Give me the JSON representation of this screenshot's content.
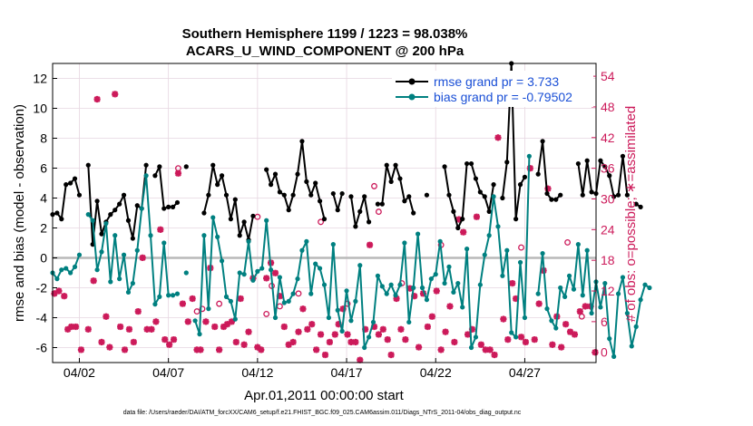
{
  "chart_data": {
    "type": "line",
    "title_line1": "Southern Hemisphere 1199 / 1223 = 98.038%",
    "title_line2": "ACARS_U_WIND_COMPONENT @ 200 hPa",
    "xlabel": "Apr.01,2011 00:00:00 start",
    "ylabel_left": "rmse and bias (model - observation)",
    "ylabel_right": "# of obs: o=possible; ∗=assimilated",
    "footer": "data file: /Users/raeder/DAI/ATM_forcXX/CAM6_setup/f.e21.FHIST_BGC.f09_025.CAM6assim.011/Diags_NTrS_2011-04/obs_diag_output.nc",
    "xlim": [
      0.5,
      31.0
    ],
    "ylim_left": [
      -7,
      13
    ],
    "ylim_right": [
      -2,
      56.5
    ],
    "x_ticks": [
      {
        "value": 2,
        "label": "04/02"
      },
      {
        "value": 7,
        "label": "04/07"
      },
      {
        "value": 12,
        "label": "04/12"
      },
      {
        "value": 17,
        "label": "04/17"
      },
      {
        "value": 22,
        "label": "04/22"
      },
      {
        "value": 27,
        "label": "04/27"
      }
    ],
    "left_ticks": [
      "-6",
      "-4",
      "-2",
      "0",
      "2",
      "4",
      "6",
      "8",
      "10",
      "12"
    ],
    "right_ticks": [
      "0",
      "6",
      "12",
      "18",
      "24",
      "30",
      "36",
      "42",
      "48",
      "54"
    ],
    "legend_position": "top-right",
    "colors": {
      "rmse": "#000000",
      "bias": "#008080",
      "obs": "#cc1a5a",
      "zero_line": "#b8b8b8",
      "grid": "#e6d6e0"
    },
    "series": [
      {
        "name": "rmse",
        "legend_label": "rmse grand pr = 3.733",
        "axis": "left",
        "x_start": 0.5,
        "step": 0.25,
        "values": [
          2.9,
          3.0,
          2.6,
          4.9,
          5.0,
          5.3,
          4.2,
          null,
          6.2,
          0.9,
          3.8,
          1.6,
          2.4,
          2.9,
          3.2,
          3.6,
          4.2,
          2.5,
          1.3,
          3.5,
          3.3,
          6.2,
          null,
          5.5,
          6.1,
          3.3,
          3.4,
          3.4,
          3.7,
          null,
          6.1,
          null,
          null,
          null,
          3.0,
          4.2,
          6.2,
          4.9,
          5.5,
          4.2,
          2.6,
          3.9,
          1.5,
          2.4,
          1.2,
          2.8,
          null,
          null,
          5.9,
          4.9,
          5.6,
          4.4,
          4.2,
          3.2,
          4.2,
          5.6,
          7.8,
          5.1,
          4.2,
          5.0,
          3.8,
          2.6,
          null,
          4.3,
          3.2,
          4.3,
          null,
          4.1,
          2.1,
          3.1,
          4.1,
          2.4,
          null,
          3.6,
          3.6,
          6.2,
          5.1,
          6.2,
          5.3,
          3.8,
          4.1,
          3.0,
          null,
          null,
          4.2,
          null,
          null,
          null,
          6.1,
          4.2,
          3.1,
          2.0,
          2.6,
          6.3,
          6.3,
          5.3,
          4.4,
          4.1,
          3.1,
          4.9,
          null,
          4.0,
          6.4,
          13.0,
          2.6,
          4.9,
          5.4,
          null,
          null,
          5.6,
          7.8,
          4.3,
          3.9,
          3.9,
          4.2,
          null,
          null,
          null,
          6.3,
          4.2,
          6.5,
          4.4,
          4.3,
          6.5,
          6.1,
          5.5,
          4.1,
          4.2,
          6.8,
          4.2,
          null,
          3.6,
          3.4,
          null,
          null
        ]
      },
      {
        "name": "bias",
        "legend_label": "bias grand pr = -0.79502",
        "axis": "left",
        "x_start": 0.5,
        "step": 0.25,
        "values": [
          -1.0,
          -1.4,
          -0.8,
          -0.7,
          -1.0,
          -0.6,
          0.2,
          null,
          2.9,
          2.5,
          -0.8,
          0.4,
          2.3,
          -1.6,
          1.5,
          -1.4,
          0.2,
          -2.3,
          -1.7,
          0.5,
          3.3,
          5.5,
          1.5,
          -3.1,
          -2.6,
          1.0,
          -2.5,
          -2.5,
          -2.4,
          null,
          -1.0,
          null,
          -4.2,
          -5.1,
          1.5,
          -3.4,
          2.7,
          1.4,
          -0.2,
          -2.6,
          -2.9,
          -4.1,
          -1.0,
          -1.1,
          1.1,
          -1.5,
          -0.9,
          -0.7,
          2.5,
          -0.8,
          -4.0,
          -1.3,
          -3.0,
          -2.9,
          -2.4,
          -1.4,
          0.5,
          1.1,
          -2.4,
          -0.4,
          -0.7,
          -1.8,
          -4.0,
          0.9,
          -3.5,
          -4.9,
          -2.2,
          -4.2,
          -2.9,
          -0.5,
          -6.0,
          -5.3,
          -4.3,
          -1.2,
          -1.9,
          -2.4,
          -1.8,
          -2.5,
          -1.8,
          1.0,
          -4.3,
          -2.0,
          1.6,
          -2.0,
          -2.8,
          -1.4,
          -1.1,
          1.1,
          -1.7,
          -0.6,
          -2.3,
          -1.7,
          -3.3,
          0.6,
          -6.0,
          -5.3,
          -1.8,
          0.2,
          1.5,
          4.1,
          2.1,
          -1.2,
          0.5,
          -5.0,
          -5.3,
          -0.3,
          -4.0,
          6.8,
          null,
          -2.4,
          0.3,
          -3.4,
          -4.2,
          -4.7,
          -2.0,
          -2.6,
          -1.2,
          -2.1,
          0.9,
          -2.5,
          0.5,
          -3.7,
          -1.6,
          -3.3,
          -1.7,
          -5.4,
          -6.6,
          -2.4,
          -1.3,
          -3.7,
          -5.9,
          -4.6,
          -2.8,
          -1.8,
          -2.0
        ]
      }
    ],
    "obs_assimilated_points": [
      [
        0.6,
        11.5
      ],
      [
        0.85,
        12.0
      ],
      [
        1.15,
        11.0
      ],
      [
        1.35,
        4.5
      ],
      [
        1.55,
        5.0
      ],
      [
        1.8,
        5.0
      ],
      [
        2.1,
        0.5
      ],
      [
        2.5,
        4.5
      ],
      [
        2.8,
        14.0
      ],
      [
        3.0,
        49.5
      ],
      [
        3.25,
        2.0
      ],
      [
        3.5,
        7.0
      ],
      [
        3.7,
        1.0
      ],
      [
        4.0,
        50.5
      ],
      [
        4.3,
        5.0
      ],
      [
        4.55,
        0.5
      ],
      [
        4.8,
        4.5
      ],
      [
        5.05,
        2.0
      ],
      [
        5.3,
        8.0
      ],
      [
        5.55,
        18.5
      ],
      [
        5.8,
        4.5
      ],
      [
        6.05,
        4.5
      ],
      [
        6.3,
        6.0
      ],
      [
        6.55,
        24.0
      ],
      [
        6.8,
        2.5
      ],
      [
        7.05,
        1.5
      ],
      [
        7.3,
        2.5
      ],
      [
        7.55,
        35.0
      ],
      [
        7.8,
        9.5
      ],
      [
        8.1,
        6.0
      ],
      [
        8.35,
        10.5
      ],
      [
        8.6,
        0.5
      ],
      [
        8.8,
        0.5
      ],
      [
        9.1,
        6.0
      ],
      [
        9.35,
        16.5
      ],
      [
        9.6,
        5.0
      ],
      [
        9.85,
        0.5
      ],
      [
        10.1,
        5.0
      ],
      [
        10.3,
        5.5
      ],
      [
        10.55,
        6.0
      ],
      [
        10.8,
        2.0
      ],
      [
        11.05,
        10.5
      ],
      [
        11.25,
        1.5
      ],
      [
        11.5,
        4.0
      ],
      [
        11.75,
        14.5
      ],
      [
        12.0,
        1.0
      ],
      [
        12.2,
        0.5
      ],
      [
        12.5,
        14.5
      ],
      [
        12.75,
        17.5
      ],
      [
        13.0,
        15.5
      ],
      [
        13.25,
        11.0
      ],
      [
        13.5,
        5.0
      ],
      [
        13.75,
        1.5
      ],
      [
        14.0,
        2.0
      ],
      [
        14.3,
        4.0
      ],
      [
        14.55,
        8.5
      ],
      [
        14.8,
        4.5
      ],
      [
        15.05,
        5.5
      ],
      [
        15.3,
        0.5
      ],
      [
        15.55,
        3.5
      ],
      [
        15.8,
        -0.5
      ],
      [
        16.05,
        2.0
      ],
      [
        16.35,
        3.5
      ],
      [
        16.55,
        5.5
      ],
      [
        16.8,
        8.5
      ],
      [
        17.05,
        3.5
      ],
      [
        17.25,
        2.0
      ],
      [
        17.5,
        2.0
      ],
      [
        17.75,
        -1.5
      ],
      [
        18.05,
        4.5
      ],
      [
        18.3,
        21.0
      ],
      [
        18.55,
        5.0
      ],
      [
        18.8,
        3.5
      ],
      [
        19.05,
        4.5
      ],
      [
        19.3,
        2.5
      ],
      [
        19.5,
        -0.5
      ],
      [
        19.8,
        10.5
      ],
      [
        20.05,
        4.5
      ],
      [
        20.3,
        2.5
      ],
      [
        20.55,
        12.5
      ],
      [
        20.8,
        11.0
      ],
      [
        21.05,
        1.0
      ],
      [
        21.3,
        11.5
      ],
      [
        21.55,
        5.0
      ],
      [
        21.8,
        7.0
      ],
      [
        22.05,
        12.0
      ],
      [
        22.3,
        0.5
      ],
      [
        22.55,
        4.0
      ],
      [
        22.8,
        9.0
      ],
      [
        23.05,
        2.0
      ],
      [
        23.3,
        26.0
      ],
      [
        23.55,
        23.5
      ],
      [
        23.8,
        3.5
      ],
      [
        24.05,
        4.5
      ],
      [
        24.3,
        26.5
      ],
      [
        24.55,
        1.5
      ],
      [
        24.8,
        0.5
      ],
      [
        25.05,
        0.5
      ],
      [
        25.3,
        -0.5
      ],
      [
        25.5,
        42.0
      ],
      [
        25.8,
        6.5
      ],
      [
        26.05,
        2.5
      ],
      [
        26.3,
        13.5
      ],
      [
        26.5,
        10.5
      ],
      [
        26.8,
        3.0
      ],
      [
        27.05,
        2.0
      ],
      [
        27.3,
        36.0
      ],
      [
        27.55,
        2.5
      ],
      [
        27.8,
        9.5
      ],
      [
        28.05,
        16.0
      ],
      [
        28.3,
        32.0
      ],
      [
        28.55,
        1.5
      ],
      [
        28.8,
        7.0
      ],
      [
        29.05,
        1.0
      ],
      [
        29.3,
        5.5
      ],
      [
        29.55,
        4.0
      ],
      [
        29.8,
        3.5
      ],
      [
        30.1,
        8.0
      ],
      [
        30.4,
        9.0
      ],
      [
        30.7,
        9.0
      ],
      [
        30.95,
        0.0
      ]
    ],
    "obs_possible_points": [
      [
        7.55,
        36.0
      ],
      [
        12.0,
        26.5
      ],
      [
        12.5,
        7.5
      ],
      [
        12.8,
        13.0
      ],
      [
        15.55,
        25.5
      ],
      [
        17.05,
        9.5
      ],
      [
        18.55,
        32.5
      ],
      [
        18.8,
        27.5
      ],
      [
        20.1,
        13.5
      ],
      [
        22.3,
        21.0
      ],
      [
        26.8,
        20.5
      ],
      [
        29.4,
        21.5
      ],
      [
        30.2,
        7.0
      ],
      [
        8.6,
        8.0
      ],
      [
        8.9,
        8.5
      ],
      [
        9.85,
        9.5
      ],
      [
        13.25,
        9.0
      ],
      [
        14.3,
        11.5
      ]
    ]
  }
}
